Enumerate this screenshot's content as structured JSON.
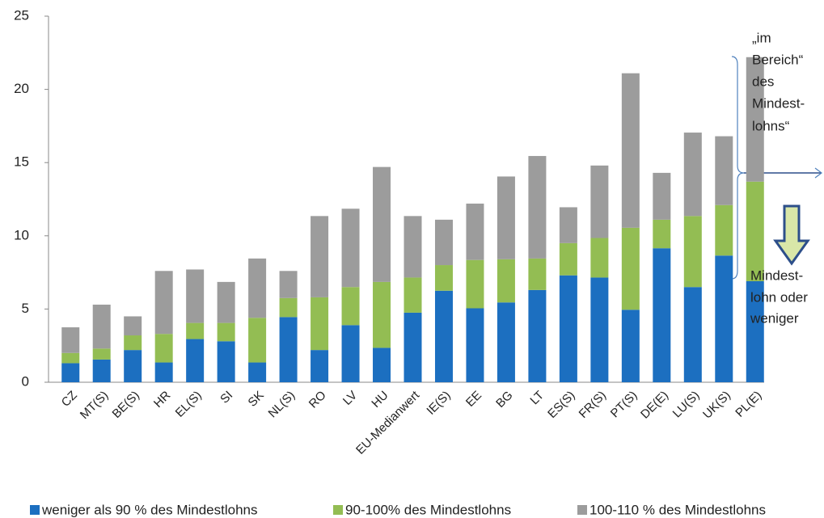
{
  "chart_data": {
    "type": "bar",
    "stacked": true,
    "categories": [
      "CZ",
      "MT(S)",
      "BE(S)",
      "HR",
      "EL(S)",
      "SI",
      "SK",
      "NL(S)",
      "RO",
      "LV",
      "HU",
      "EU-Medianwert",
      "IE(S)",
      "EE",
      "BG",
      "LT",
      "ES(S)",
      "FR(S)",
      "PT(S)",
      "DE(E)",
      "LU(S)",
      "UK(S)",
      "PL(E)"
    ],
    "series": [
      {
        "name": "weniger als 90 % des Mindestlohns",
        "color": "#1c6fc0",
        "values": [
          1.3,
          1.55,
          2.2,
          1.35,
          2.95,
          2.8,
          1.35,
          4.45,
          2.2,
          3.9,
          2.35,
          4.75,
          6.25,
          5.05,
          5.45,
          6.3,
          7.3,
          7.15,
          4.95,
          9.15,
          6.5,
          8.65,
          6.9
        ]
      },
      {
        "name": "90-100% des Mindestlohns",
        "color": "#93bd53",
        "values": [
          0.7,
          0.75,
          1.0,
          1.95,
          1.1,
          1.25,
          3.05,
          1.3,
          3.6,
          2.6,
          4.5,
          2.4,
          1.75,
          3.3,
          2.95,
          2.15,
          2.2,
          2.7,
          5.6,
          1.95,
          4.85,
          3.45,
          6.8
        ]
      },
      {
        "name": "100-110 % des Mindestlohns",
        "color": "#9c9c9c",
        "values": [
          1.75,
          3.0,
          1.3,
          4.3,
          3.65,
          2.8,
          4.05,
          1.85,
          5.55,
          5.35,
          7.85,
          4.2,
          3.1,
          3.85,
          5.65,
          7.0,
          2.45,
          4.95,
          10.55,
          3.2,
          5.7,
          4.7,
          8.5
        ]
      }
    ],
    "ylim": [
      0,
      25
    ],
    "yticks": [
      0,
      5,
      10,
      15,
      20,
      25
    ],
    "annotations": [
      {
        "lines": [
          "„im",
          "Bereich“",
          "des",
          "Mindest-",
          "lohns“"
        ]
      },
      {
        "lines": [
          "Mindest-",
          "lohn oder",
          "weniger"
        ]
      }
    ]
  }
}
